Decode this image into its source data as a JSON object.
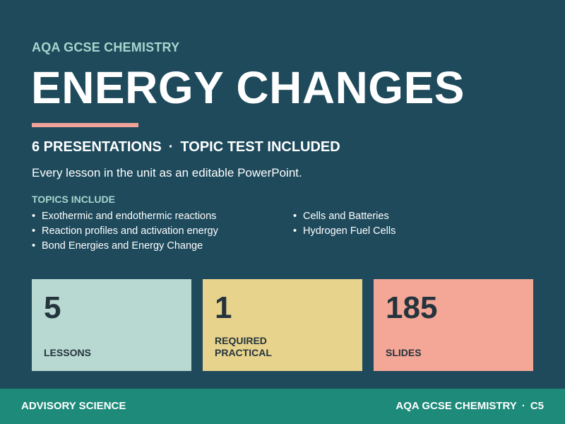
{
  "header": {
    "kicker": "AQA GCSE CHEMISTRY",
    "title": "ENERGY CHANGES"
  },
  "subhead": {
    "part1": "6 PRESENTATIONS",
    "separator": "·",
    "part2": "TOPIC TEST INCLUDED"
  },
  "description": "Every lesson in the unit as an editable PowerPoint.",
  "topics": {
    "label": "TOPICS INCLUDE",
    "bullet": "•",
    "left": [
      "Exothermic and endothermic reactions",
      "Reaction profiles and activation energy",
      "Bond Energies and Energy Change"
    ],
    "right": [
      "Cells and Batteries",
      "Hydrogen Fuel Cells"
    ]
  },
  "stats": [
    {
      "value": "5",
      "label": "LESSONS",
      "color": "#b8d8d2"
    },
    {
      "value": "1",
      "label": "REQUIRED\nPRACTICAL",
      "color": "#e8d38d"
    },
    {
      "value": "185",
      "label": "SLIDES",
      "color": "#f4a697"
    }
  ],
  "footer": {
    "left": "ADVISORY SCIENCE",
    "right_part1": "AQA GCSE CHEMISTRY",
    "separator": "·",
    "right_part2": "C5"
  },
  "colors": {
    "background": "#1e4a5c",
    "accent_rule": "#f0a398",
    "kicker": "#a9d4cd",
    "footer": "#1e8a7a"
  }
}
